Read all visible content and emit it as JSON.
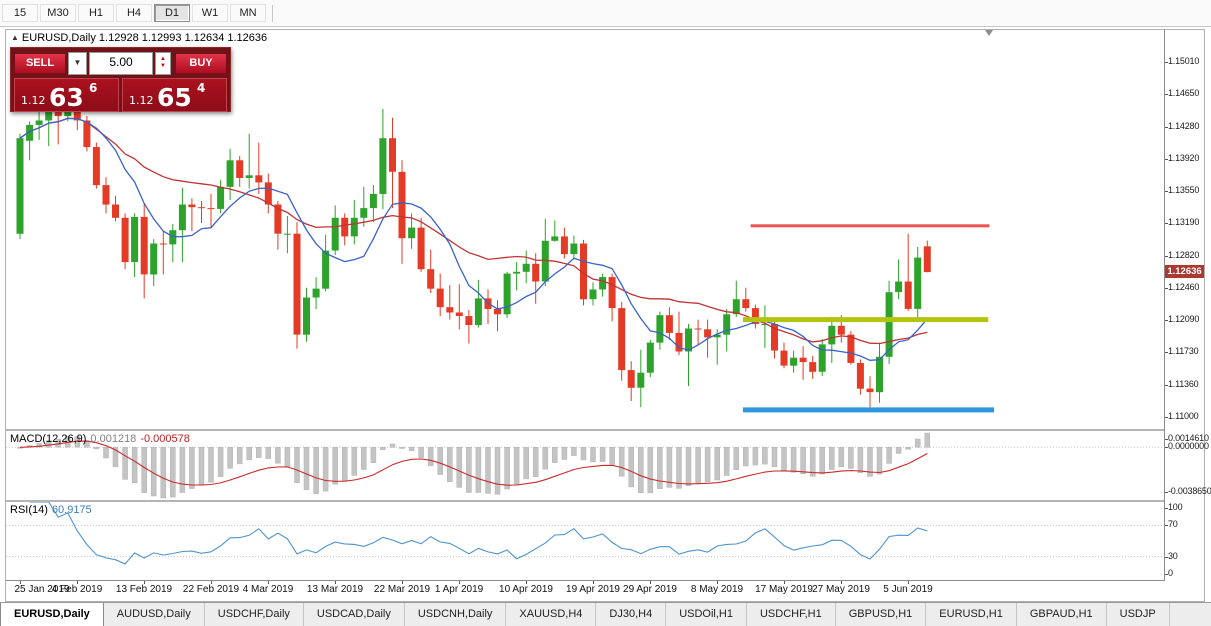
{
  "toolbar": {
    "timeframes": [
      {
        "label": "15",
        "active": false
      },
      {
        "label": "M30",
        "active": false
      },
      {
        "label": "H1",
        "active": false
      },
      {
        "label": "H4",
        "active": false
      },
      {
        "label": "D1",
        "active": true
      },
      {
        "label": "W1",
        "active": false
      },
      {
        "label": "MN",
        "active": false
      }
    ]
  },
  "chart_header": {
    "icon": "▲",
    "text": "EURUSD,Daily 1.12928 1.12993 1.12634 1.12636"
  },
  "trade_panel": {
    "sell_label": "SELL",
    "buy_label": "BUY",
    "volume": "5.00",
    "icons": {
      "dropdown": "▼",
      "spin_up": "▲",
      "spin_down": "▼"
    },
    "sell_price": {
      "prefix": "1.12",
      "big": "63",
      "sup": "6"
    },
    "buy_price": {
      "prefix": "1.12",
      "big": "65",
      "sup": "4"
    }
  },
  "indicators": {
    "macd": {
      "name": "MACD(12,26,9)",
      "value_main": "0.001218",
      "value_signal": "-0.000578",
      "axis": [
        "0.0014610",
        "0.0000000",
        "-0.0038650"
      ]
    },
    "rsi": {
      "name": "RSI(14)",
      "value": "60.9175",
      "axis": [
        "100",
        "70",
        "30",
        "0"
      ],
      "levels": [
        70,
        30
      ]
    }
  },
  "price_axis": {
    "labels": [
      "1.15010",
      "1.14650",
      "1.14280",
      "1.13920",
      "1.13550",
      "1.13190",
      "1.12820",
      "1.12460",
      "1.12090",
      "1.11730",
      "1.11360",
      "1.11000"
    ],
    "current": "1.12636",
    "current_bg": "#aa3b32"
  },
  "date_axis": {
    "ticks": [
      {
        "label": "25 Jan 2019",
        "i": 0
      },
      {
        "label": "4 Feb 2019",
        "i": 6
      },
      {
        "label": "13 Feb 2019",
        "i": 13
      },
      {
        "label": "22 Feb 2019",
        "i": 20
      },
      {
        "label": "4 Mar 2019",
        "i": 26
      },
      {
        "label": "13 Mar 2019",
        "i": 33
      },
      {
        "label": "22 Mar 2019",
        "i": 40
      },
      {
        "label": "1 Apr 2019",
        "i": 46
      },
      {
        "label": "10 Apr 2019",
        "i": 53
      },
      {
        "label": "19 Apr 2019",
        "i": 60
      },
      {
        "label": "29 Apr 2019",
        "i": 66
      },
      {
        "label": "8 May 2019",
        "i": 73
      },
      {
        "label": "17 May 2019",
        "i": 80
      },
      {
        "label": "27 May 2019",
        "i": 86
      },
      {
        "label": "5 Jun 2019",
        "i": 93
      }
    ]
  },
  "tabs": [
    {
      "label": "EURUSD,Daily",
      "active": true
    },
    {
      "label": "AUDUSD,Daily",
      "active": false
    },
    {
      "label": "USDCHF,Daily",
      "active": false
    },
    {
      "label": "USDCAD,Daily",
      "active": false
    },
    {
      "label": "USDCNH,Daily",
      "active": false
    },
    {
      "label": "XAUUSD,H4",
      "active": false
    },
    {
      "label": "DJ30,H4",
      "active": false
    },
    {
      "label": "USDOil,H1",
      "active": false
    },
    {
      "label": "USDCHF,H1",
      "active": false
    },
    {
      "label": "GBPUSD,H1",
      "active": false
    },
    {
      "label": "EURUSD,H1",
      "active": false
    },
    {
      "label": "GBPAUD,H1",
      "active": false
    },
    {
      "label": "USDJP",
      "active": false
    }
  ],
  "chart_data": {
    "type": "candlestick",
    "title": "EURUSD,Daily",
    "symbol": "EURUSD",
    "timeframe": "Daily",
    "ohlc_current": {
      "open": 1.12928,
      "high": 1.12993,
      "low": 1.12634,
      "close": 1.12636
    },
    "ylim": {
      "min": 1.10864,
      "max": 1.15372
    },
    "colors": {
      "up": "#2da32b",
      "down": "#e33b26",
      "ma_fast": "#3a62c8",
      "ma_slow": "#c03333",
      "macd_hist": "#c4c4c4",
      "macd_signal": "#cc2b2b",
      "rsi_line": "#4f94cd"
    },
    "moving_averages": [
      {
        "period": 8,
        "color_key": "ma_fast"
      },
      {
        "period": 21,
        "color_key": "ma_slow"
      }
    ],
    "macd_params": {
      "fast": 12,
      "slow": 26,
      "signal": 9
    },
    "rsi_params": {
      "period": 14
    },
    "hlines": [
      {
        "name": "resistance",
        "price": 1.1316,
        "from_index": 76.5,
        "to_index": 101.5,
        "color": "#ef5350",
        "thickness": 3
      },
      {
        "name": "support-mid",
        "price": 1.121,
        "from_index": 75.7,
        "to_index": 101.4,
        "color": "#b2c50e",
        "thickness": 5
      },
      {
        "name": "support-low",
        "price": 1.1108,
        "from_index": 75.7,
        "to_index": 102,
        "color": "#2e97dd",
        "thickness": 5
      }
    ],
    "candles": [
      [
        1.1307,
        1.142,
        1.1301,
        1.1415
      ],
      [
        1.1412,
        1.1434,
        1.139,
        1.143
      ],
      [
        1.143,
        1.1449,
        1.1413,
        1.1435
      ],
      [
        1.1435,
        1.1461,
        1.1406,
        1.1448
      ],
      [
        1.1448,
        1.146,
        1.1408,
        1.144
      ],
      [
        1.144,
        1.1463,
        1.1434,
        1.1456
      ],
      [
        1.1454,
        1.1458,
        1.1424,
        1.1435
      ],
      [
        1.1435,
        1.144,
        1.14,
        1.1405
      ],
      [
        1.1405,
        1.141,
        1.1358,
        1.1362
      ],
      [
        1.1362,
        1.1371,
        1.133,
        1.134
      ],
      [
        1.134,
        1.135,
        1.1321,
        1.1325
      ],
      [
        1.1325,
        1.133,
        1.1267,
        1.1275
      ],
      [
        1.1275,
        1.133,
        1.1258,
        1.1326
      ],
      [
        1.1326,
        1.1341,
        1.1234,
        1.1261
      ],
      [
        1.1261,
        1.1301,
        1.1248,
        1.1296
      ],
      [
        1.1296,
        1.131,
        1.1261,
        1.1295
      ],
      [
        1.1295,
        1.1318,
        1.1275,
        1.1311
      ],
      [
        1.1311,
        1.1359,
        1.1275,
        1.134
      ],
      [
        1.134,
        1.1347,
        1.131,
        1.1337
      ],
      [
        1.1337,
        1.1344,
        1.1319,
        1.1336
      ],
      [
        1.1336,
        1.1352,
        1.1315,
        1.1335
      ],
      [
        1.1335,
        1.1368,
        1.133,
        1.136
      ],
      [
        1.136,
        1.1403,
        1.1345,
        1.139
      ],
      [
        1.139,
        1.1395,
        1.136,
        1.137
      ],
      [
        1.137,
        1.142,
        1.1358,
        1.1373
      ],
      [
        1.1373,
        1.141,
        1.1352,
        1.1365
      ],
      [
        1.1365,
        1.1375,
        1.133,
        1.134
      ],
      [
        1.134,
        1.1344,
        1.1289,
        1.1307
      ],
      [
        1.1307,
        1.1327,
        1.1285,
        1.1307
      ],
      [
        1.1307,
        1.132,
        1.1177,
        1.1193
      ],
      [
        1.1193,
        1.1246,
        1.1185,
        1.1235
      ],
      [
        1.1235,
        1.1258,
        1.1222,
        1.1245
      ],
      [
        1.1245,
        1.1306,
        1.1242,
        1.1288
      ],
      [
        1.1288,
        1.1339,
        1.1283,
        1.1325
      ],
      [
        1.1325,
        1.133,
        1.1294,
        1.1304
      ],
      [
        1.1304,
        1.1345,
        1.1295,
        1.1325
      ],
      [
        1.1325,
        1.136,
        1.1315,
        1.1336
      ],
      [
        1.1336,
        1.1362,
        1.132,
        1.1352
      ],
      [
        1.1352,
        1.1448,
        1.1335,
        1.1415
      ],
      [
        1.1415,
        1.1438,
        1.1336,
        1.1377
      ],
      [
        1.1377,
        1.139,
        1.1273,
        1.1302
      ],
      [
        1.1302,
        1.133,
        1.129,
        1.1314
      ],
      [
        1.1314,
        1.1325,
        1.1264,
        1.1267
      ],
      [
        1.1267,
        1.1289,
        1.124,
        1.1245
      ],
      [
        1.1245,
        1.1262,
        1.1214,
        1.1224
      ],
      [
        1.1224,
        1.1249,
        1.121,
        1.1218
      ],
      [
        1.1218,
        1.125,
        1.1199,
        1.1214
      ],
      [
        1.1214,
        1.1221,
        1.1183,
        1.1204
      ],
      [
        1.1204,
        1.1255,
        1.1201,
        1.1234
      ],
      [
        1.1234,
        1.1244,
        1.1205,
        1.1222
      ],
      [
        1.1222,
        1.1232,
        1.1197,
        1.1216
      ],
      [
        1.1216,
        1.1264,
        1.1212,
        1.1262
      ],
      [
        1.1262,
        1.1275,
        1.1243,
        1.1264
      ],
      [
        1.1264,
        1.1288,
        1.1251,
        1.1273
      ],
      [
        1.1273,
        1.1285,
        1.1228,
        1.1253
      ],
      [
        1.1253,
        1.1324,
        1.1248,
        1.1299
      ],
      [
        1.1299,
        1.1322,
        1.1298,
        1.1304
      ],
      [
        1.1304,
        1.1314,
        1.1279,
        1.1284
      ],
      [
        1.1284,
        1.1305,
        1.1278,
        1.1296
      ],
      [
        1.1296,
        1.13,
        1.1226,
        1.1233
      ],
      [
        1.1233,
        1.1252,
        1.1226,
        1.1244
      ],
      [
        1.1244,
        1.1262,
        1.1236,
        1.1258
      ],
      [
        1.1258,
        1.1262,
        1.1208,
        1.1223
      ],
      [
        1.1223,
        1.123,
        1.1141,
        1.1153
      ],
      [
        1.1153,
        1.1163,
        1.1118,
        1.1133
      ],
      [
        1.1133,
        1.1176,
        1.1111,
        1.115
      ],
      [
        1.115,
        1.1187,
        1.1145,
        1.1184
      ],
      [
        1.1184,
        1.1219,
        1.1176,
        1.1215
      ],
      [
        1.1215,
        1.1224,
        1.1187,
        1.1195
      ],
      [
        1.1195,
        1.1219,
        1.117,
        1.1174
      ],
      [
        1.1174,
        1.1205,
        1.1135,
        1.12
      ],
      [
        1.12,
        1.121,
        1.1182,
        1.1199
      ],
      [
        1.1199,
        1.121,
        1.1167,
        1.119
      ],
      [
        1.119,
        1.1199,
        1.1159,
        1.1193
      ],
      [
        1.1193,
        1.1222,
        1.1174,
        1.1216
      ],
      [
        1.1216,
        1.1254,
        1.1213,
        1.1233
      ],
      [
        1.1233,
        1.1246,
        1.1219,
        1.1223
      ],
      [
        1.1223,
        1.1227,
        1.12,
        1.1205
      ],
      [
        1.1205,
        1.1226,
        1.1178,
        1.1205
      ],
      [
        1.1205,
        1.1209,
        1.1166,
        1.1175
      ],
      [
        1.1175,
        1.1184,
        1.1155,
        1.1158
      ],
      [
        1.1158,
        1.1175,
        1.115,
        1.1167
      ],
      [
        1.1167,
        1.118,
        1.1142,
        1.1162
      ],
      [
        1.1162,
        1.1169,
        1.1143,
        1.1151
      ],
      [
        1.1151,
        1.1188,
        1.1146,
        1.1182
      ],
      [
        1.1182,
        1.1213,
        1.1161,
        1.1203
      ],
      [
        1.1203,
        1.1215,
        1.1184,
        1.1193
      ],
      [
        1.1193,
        1.1197,
        1.1159,
        1.1161
      ],
      [
        1.1161,
        1.1165,
        1.1125,
        1.1132
      ],
      [
        1.1132,
        1.1146,
        1.1107,
        1.1128
      ],
      [
        1.1128,
        1.1184,
        1.1116,
        1.1168
      ],
      [
        1.1168,
        1.1254,
        1.116,
        1.1241
      ],
      [
        1.1241,
        1.1278,
        1.1233,
        1.1253
      ],
      [
        1.1253,
        1.1307,
        1.122,
        1.1222
      ],
      [
        1.1222,
        1.1292,
        1.121,
        1.128
      ],
      [
        1.12928,
        1.12993,
        1.12634,
        1.12636
      ]
    ]
  }
}
